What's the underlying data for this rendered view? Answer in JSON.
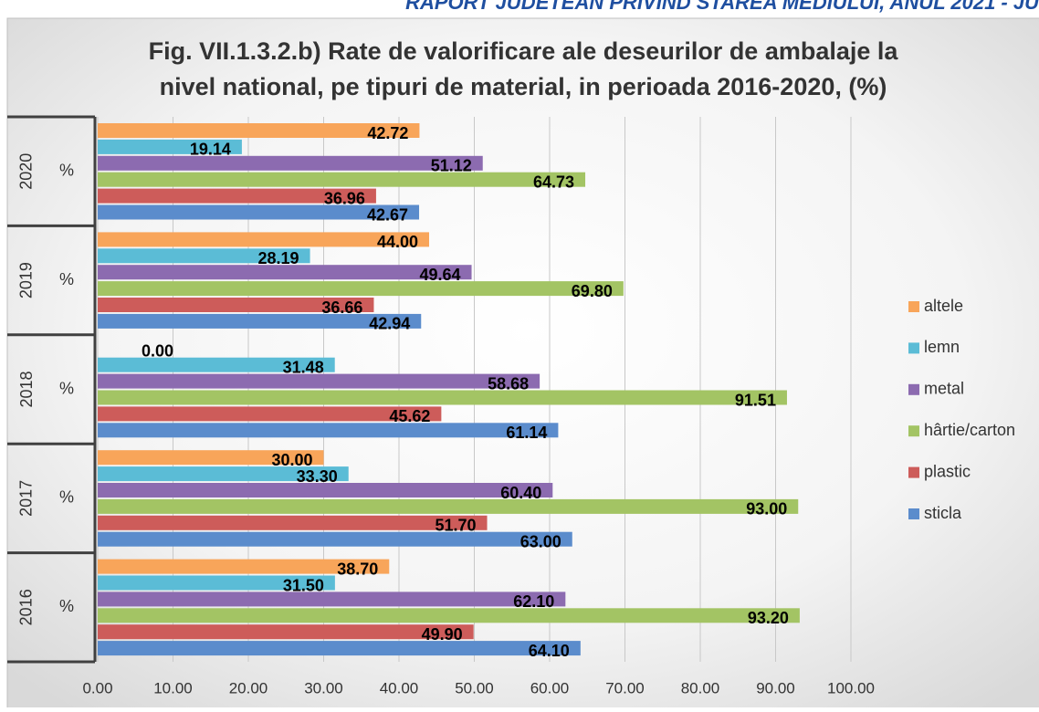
{
  "header": "RAPORT JUDETEAN PRIVIND STAREA MEDIULUI, ANUL 2021 - JU",
  "chart_data": {
    "type": "hbar",
    "title": [
      "Fig. VII.1.3.2.b) Rate de valorificare ale deseurilor de ambalaje la",
      "nivel national, pe tipuri de material, in perioada 2016-2020, (%)"
    ],
    "categories": [
      "2016",
      "2017",
      "2018",
      "2019",
      "2020"
    ],
    "subcategories": [
      "%",
      "%",
      "%",
      "%",
      "%"
    ],
    "series": [
      {
        "name": "altele",
        "color": "#f8a55a",
        "values": [
          38.7,
          30,
          0,
          44,
          42.72
        ],
        "value_labels": [
          "38.70",
          "30.00",
          "0.00",
          "44.00",
          "42.72"
        ]
      },
      {
        "name": "lemn",
        "color": "#5bbcd6",
        "values": [
          31.5,
          33.3,
          31.48,
          28.19,
          19.14
        ],
        "value_labels": [
          "31.50",
          "33.30",
          "31.48",
          "28.19",
          "19.14"
        ]
      },
      {
        "name": "metal",
        "color": "#8c6bb0",
        "values": [
          62.1,
          60.4,
          58.68,
          49.64,
          51.12
        ],
        "value_labels": [
          "62.10",
          "60.40",
          "58.68",
          "49.64",
          "51.12"
        ]
      },
      {
        "name": "hârtie/carton",
        "color": "#a3c464",
        "values": [
          93.2,
          93,
          91.51,
          69.8,
          64.73
        ],
        "value_labels": [
          "93.20",
          "93.00",
          "91.51",
          "69.80",
          "64.73"
        ]
      },
      {
        "name": "plastic",
        "color": "#cd5c5a",
        "values": [
          49.9,
          51.7,
          45.62,
          36.66,
          36.96
        ],
        "value_labels": [
          "49.90",
          "51.70",
          "45.62",
          "36.66",
          "36.96"
        ]
      },
      {
        "name": "sticla",
        "color": "#5b8ccc",
        "values": [
          64.1,
          63,
          61.14,
          42.94,
          42.67
        ],
        "value_labels": [
          "64.10",
          "63.00",
          "61.14",
          "42.94",
          "42.67"
        ]
      }
    ],
    "xlim": [
      0,
      100
    ],
    "xticks": [
      {
        "value": 0,
        "label": "0.00"
      },
      {
        "value": 10,
        "label": "10.00"
      },
      {
        "value": 20,
        "label": "20.00"
      },
      {
        "value": 30,
        "label": "30.00"
      },
      {
        "value": 40,
        "label": "40.00"
      },
      {
        "value": 50,
        "label": "50.00"
      },
      {
        "value": 60,
        "label": "60.00"
      },
      {
        "value": 70,
        "label": "70.00"
      },
      {
        "value": 80,
        "label": "80.00"
      },
      {
        "value": 90,
        "label": "90.00"
      },
      {
        "value": 100,
        "label": "100.00"
      }
    ],
    "grid": true,
    "legend": "right"
  }
}
